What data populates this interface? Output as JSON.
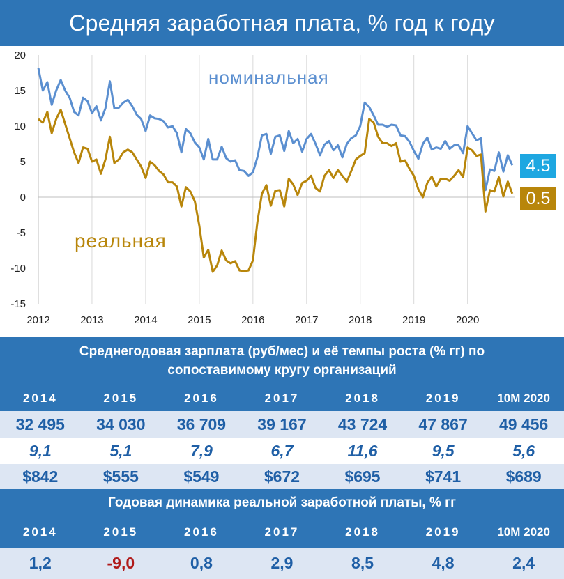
{
  "page_title": "Средняя заработная плата, % год к году",
  "colors": {
    "header_bg": "#2e75b6",
    "nominal_line": "#5b8fd0",
    "real_line": "#b8860b",
    "nominal_badge": "#1ea7e1",
    "real_badge": "#b8860b",
    "negative_value": "#b01a1a"
  },
  "chart_data": {
    "type": "line",
    "ylim": [
      -15,
      20
    ],
    "yticks": [
      "20",
      "15",
      "10",
      "5",
      "0",
      "-5",
      "-10",
      "-15"
    ],
    "xlim": [
      2012,
      2020.875
    ],
    "xticks": [
      "2012",
      "2013",
      "2014",
      "2015",
      "2016",
      "2017",
      "2018",
      "2019",
      "2020"
    ],
    "grid": "vertical",
    "series": [
      {
        "name": "номинальная",
        "last_value_label": "4.5",
        "points": [
          [
            2012.0,
            18.2
          ],
          [
            2012.083,
            15.0
          ],
          [
            2012.167,
            16.2
          ],
          [
            2012.25,
            13.0
          ],
          [
            2012.333,
            15.0
          ],
          [
            2012.417,
            16.5
          ],
          [
            2012.5,
            15.0
          ],
          [
            2012.583,
            14.0
          ],
          [
            2012.667,
            12.0
          ],
          [
            2012.75,
            11.5
          ],
          [
            2012.833,
            14.0
          ],
          [
            2012.917,
            13.5
          ],
          [
            2013.0,
            11.8
          ],
          [
            2013.083,
            12.8
          ],
          [
            2013.167,
            10.8
          ],
          [
            2013.25,
            12.5
          ],
          [
            2013.333,
            16.3
          ],
          [
            2013.417,
            12.5
          ],
          [
            2013.5,
            12.6
          ],
          [
            2013.583,
            13.3
          ],
          [
            2013.667,
            13.7
          ],
          [
            2013.75,
            12.8
          ],
          [
            2013.833,
            11.6
          ],
          [
            2013.917,
            11.0
          ],
          [
            2014.0,
            9.3
          ],
          [
            2014.083,
            11.5
          ],
          [
            2014.167,
            11.1
          ],
          [
            2014.25,
            11.0
          ],
          [
            2014.333,
            10.7
          ],
          [
            2014.417,
            9.8
          ],
          [
            2014.5,
            10.0
          ],
          [
            2014.583,
            9.0
          ],
          [
            2014.667,
            6.3
          ],
          [
            2014.75,
            9.6
          ],
          [
            2014.833,
            9.0
          ],
          [
            2014.917,
            7.7
          ],
          [
            2015.0,
            7.0
          ],
          [
            2015.083,
            5.3
          ],
          [
            2015.167,
            8.2
          ],
          [
            2015.25,
            5.3
          ],
          [
            2015.333,
            5.3
          ],
          [
            2015.417,
            7.1
          ],
          [
            2015.5,
            5.5
          ],
          [
            2015.583,
            5.0
          ],
          [
            2015.667,
            5.2
          ],
          [
            2015.75,
            3.8
          ],
          [
            2015.833,
            3.7
          ],
          [
            2015.917,
            3.0
          ],
          [
            2016.0,
            3.5
          ],
          [
            2016.083,
            5.6
          ],
          [
            2016.167,
            8.7
          ],
          [
            2016.25,
            8.9
          ],
          [
            2016.333,
            6.1
          ],
          [
            2016.417,
            8.5
          ],
          [
            2016.5,
            8.7
          ],
          [
            2016.583,
            6.5
          ],
          [
            2016.667,
            9.3
          ],
          [
            2016.75,
            7.6
          ],
          [
            2016.833,
            8.2
          ],
          [
            2016.917,
            6.4
          ],
          [
            2017.0,
            8.2
          ],
          [
            2017.083,
            8.9
          ],
          [
            2017.167,
            7.5
          ],
          [
            2017.25,
            5.9
          ],
          [
            2017.333,
            7.4
          ],
          [
            2017.417,
            7.9
          ],
          [
            2017.5,
            6.6
          ],
          [
            2017.583,
            7.3
          ],
          [
            2017.667,
            5.6
          ],
          [
            2017.75,
            7.5
          ],
          [
            2017.833,
            8.3
          ],
          [
            2017.917,
            8.7
          ],
          [
            2018.0,
            10.0
          ],
          [
            2018.083,
            13.3
          ],
          [
            2018.167,
            12.7
          ],
          [
            2018.25,
            11.5
          ],
          [
            2018.333,
            10.2
          ],
          [
            2018.417,
            10.2
          ],
          [
            2018.5,
            9.9
          ],
          [
            2018.583,
            10.2
          ],
          [
            2018.667,
            10.1
          ],
          [
            2018.75,
            8.7
          ],
          [
            2018.833,
            8.6
          ],
          [
            2018.917,
            7.8
          ],
          [
            2019.0,
            6.5
          ],
          [
            2019.083,
            5.4
          ],
          [
            2019.167,
            7.5
          ],
          [
            2019.25,
            8.4
          ],
          [
            2019.333,
            6.7
          ],
          [
            2019.417,
            7.0
          ],
          [
            2019.5,
            6.8
          ],
          [
            2019.583,
            7.9
          ],
          [
            2019.667,
            6.8
          ],
          [
            2019.75,
            7.3
          ],
          [
            2019.833,
            7.3
          ],
          [
            2019.917,
            6.2
          ],
          [
            2020.0,
            10.0
          ],
          [
            2020.083,
            9.0
          ],
          [
            2020.167,
            8.0
          ],
          [
            2020.25,
            8.3
          ],
          [
            2020.333,
            1.0
          ],
          [
            2020.417,
            3.9
          ],
          [
            2020.5,
            3.7
          ],
          [
            2020.583,
            6.3
          ],
          [
            2020.667,
            3.6
          ],
          [
            2020.75,
            5.9
          ],
          [
            2020.833,
            4.5
          ]
        ]
      },
      {
        "name": "реальная",
        "last_value_label": "0.5",
        "points": [
          [
            2012.0,
            11.0
          ],
          [
            2012.083,
            10.5
          ],
          [
            2012.167,
            12.0
          ],
          [
            2012.25,
            9.0
          ],
          [
            2012.333,
            11.0
          ],
          [
            2012.417,
            12.3
          ],
          [
            2012.5,
            10.3
          ],
          [
            2012.583,
            8.3
          ],
          [
            2012.667,
            6.3
          ],
          [
            2012.75,
            4.8
          ],
          [
            2012.833,
            7.0
          ],
          [
            2012.917,
            6.8
          ],
          [
            2013.0,
            5.0
          ],
          [
            2013.083,
            5.3
          ],
          [
            2013.167,
            3.3
          ],
          [
            2013.25,
            5.3
          ],
          [
            2013.333,
            8.5
          ],
          [
            2013.417,
            4.8
          ],
          [
            2013.5,
            5.3
          ],
          [
            2013.583,
            6.3
          ],
          [
            2013.667,
            6.7
          ],
          [
            2013.75,
            6.3
          ],
          [
            2013.833,
            5.3
          ],
          [
            2013.917,
            4.3
          ],
          [
            2014.0,
            2.7
          ],
          [
            2014.083,
            5.0
          ],
          [
            2014.167,
            4.5
          ],
          [
            2014.25,
            3.7
          ],
          [
            2014.333,
            3.2
          ],
          [
            2014.417,
            2.1
          ],
          [
            2014.5,
            2.1
          ],
          [
            2014.583,
            1.5
          ],
          [
            2014.667,
            -1.3
          ],
          [
            2014.75,
            1.4
          ],
          [
            2014.833,
            0.8
          ],
          [
            2014.917,
            -0.6
          ],
          [
            2015.0,
            -4.0
          ],
          [
            2015.083,
            -8.5
          ],
          [
            2015.167,
            -7.4
          ],
          [
            2015.25,
            -10.5
          ],
          [
            2015.333,
            -9.6
          ],
          [
            2015.417,
            -7.5
          ],
          [
            2015.5,
            -8.9
          ],
          [
            2015.583,
            -9.3
          ],
          [
            2015.667,
            -9.0
          ],
          [
            2015.75,
            -10.3
          ],
          [
            2015.833,
            -10.4
          ],
          [
            2015.917,
            -10.3
          ],
          [
            2016.0,
            -8.9
          ],
          [
            2016.083,
            -3.5
          ],
          [
            2016.167,
            0.5
          ],
          [
            2016.25,
            1.7
          ],
          [
            2016.333,
            -1.2
          ],
          [
            2016.417,
            0.9
          ],
          [
            2016.5,
            1.0
          ],
          [
            2016.583,
            -1.3
          ],
          [
            2016.667,
            2.6
          ],
          [
            2016.75,
            1.8
          ],
          [
            2016.833,
            0.3
          ],
          [
            2016.917,
            2.0
          ],
          [
            2017.0,
            2.3
          ],
          [
            2017.083,
            3.0
          ],
          [
            2017.167,
            1.3
          ],
          [
            2017.25,
            0.8
          ],
          [
            2017.333,
            3.0
          ],
          [
            2017.417,
            3.8
          ],
          [
            2017.5,
            2.7
          ],
          [
            2017.583,
            3.8
          ],
          [
            2017.667,
            3.0
          ],
          [
            2017.75,
            2.2
          ],
          [
            2017.833,
            3.7
          ],
          [
            2017.917,
            5.3
          ],
          [
            2018.0,
            5.8
          ],
          [
            2018.083,
            6.2
          ],
          [
            2018.167,
            11.0
          ],
          [
            2018.25,
            10.5
          ],
          [
            2018.333,
            8.5
          ],
          [
            2018.417,
            7.6
          ],
          [
            2018.5,
            7.6
          ],
          [
            2018.583,
            7.2
          ],
          [
            2018.667,
            7.6
          ],
          [
            2018.75,
            5.0
          ],
          [
            2018.833,
            5.2
          ],
          [
            2018.917,
            4.0
          ],
          [
            2019.0,
            3.0
          ],
          [
            2019.083,
            1.1
          ],
          [
            2019.167,
            0.0
          ],
          [
            2019.25,
            2.0
          ],
          [
            2019.333,
            2.9
          ],
          [
            2019.417,
            1.5
          ],
          [
            2019.5,
            2.6
          ],
          [
            2019.583,
            2.6
          ],
          [
            2019.667,
            2.3
          ],
          [
            2019.75,
            3.0
          ],
          [
            2019.833,
            3.8
          ],
          [
            2019.917,
            2.8
          ],
          [
            2020.0,
            7.0
          ],
          [
            2020.083,
            6.6
          ],
          [
            2020.167,
            5.8
          ],
          [
            2020.25,
            6.0
          ],
          [
            2020.333,
            -2.0
          ],
          [
            2020.417,
            1.0
          ],
          [
            2020.5,
            0.8
          ],
          [
            2020.583,
            2.8
          ],
          [
            2020.667,
            0.1
          ],
          [
            2020.75,
            2.2
          ],
          [
            2020.833,
            0.5
          ]
        ]
      }
    ]
  },
  "table1": {
    "header": "Среднегодовая зарплата (руб/мес) и её темпы роста (% гг)  по сопоставимому кругу организаций",
    "years": [
      "2014",
      "2015",
      "2016",
      "2017",
      "2018",
      "2019",
      "10M 2020"
    ],
    "salary_rub": [
      "32 495",
      "34 030",
      "36 709",
      "39 167",
      "43 724",
      "47 867",
      "49 456"
    ],
    "growth_pct": [
      "9,1",
      "5,1",
      "7,9",
      "6,7",
      "11,6",
      "9,5",
      "5,6"
    ],
    "salary_usd": [
      "$842",
      "$555",
      "$549",
      "$672",
      "$695",
      "$741",
      "$689"
    ]
  },
  "table2": {
    "header": "Годовая динамика реальной заработной платы, % гг",
    "years": [
      "2014",
      "2015",
      "2016",
      "2017",
      "2018",
      "2019",
      "10M 2020"
    ],
    "real_growth": [
      "1,2",
      "-9,0",
      "0,8",
      "2,9",
      "8,5",
      "4,8",
      "2,4"
    ]
  }
}
